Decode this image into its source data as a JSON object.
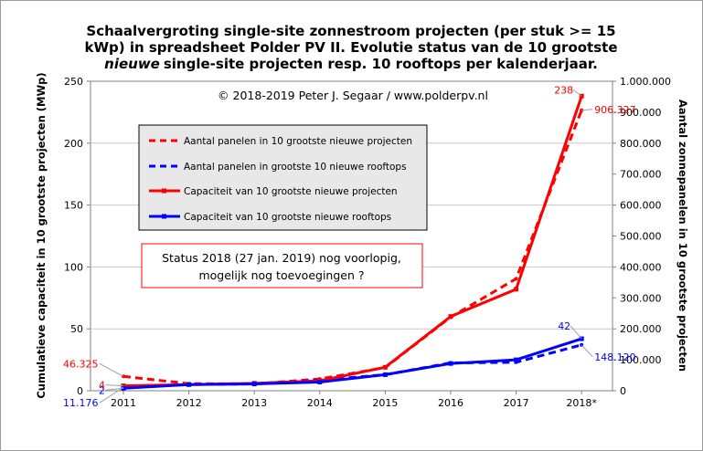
{
  "chart_data": {
    "type": "line",
    "title_lines": [
      "Schaalvergroting  single-site  zonnestroom  projecten  (per  stuk  >=  15",
      "kWp) in spreadsheet Polder PV II. Evolutie status van de 10 grootste",
      "single-site  projecten  resp.  10  rooftops  per  kalenderjaar."
    ],
    "title_italic_word": "nieuwe",
    "copyright": "© 2018-2019  Peter J. Segaar / www.polderpv.nl",
    "note_lines": [
      "Status 2018 (27 jan. 2019) nog voorlopig,",
      "mogelijk  nog toevoegingen ?"
    ],
    "categories": [
      "2011",
      "2012",
      "2013",
      "2014",
      "2015",
      "2016",
      "2017",
      "2018*"
    ],
    "ylabel_left": "Cumulatieve capaciteit in 10 grootste projecten (MWp)",
    "ylabel_right": "Aantal zonnepanelen in 10 grootste projecten",
    "ylim_left": [
      0,
      250
    ],
    "ylim_right": [
      0,
      1000000
    ],
    "yticks_left": [
      "0",
      "50",
      "100",
      "150",
      "200",
      "250"
    ],
    "yticks_right": [
      "0",
      "100.000",
      "200.000",
      "300.000",
      "400.000",
      "500.000",
      "600.000",
      "700.000",
      "800.000",
      "900.000",
      "1.000.000"
    ],
    "grid": true,
    "legend_position": "upper-left",
    "series": [
      {
        "name": "Aantal panelen in 10 grootste nieuwe projecten",
        "axis": "right",
        "style": "dashed",
        "color": "#ff0000",
        "values": [
          46325,
          23000,
          22000,
          38000,
          75000,
          238000,
          362000,
          906327
        ]
      },
      {
        "name": "Aantal panelen in grootste 10 nieuwe rooftops",
        "axis": "right",
        "style": "dashed",
        "color": "#0000ff",
        "values": [
          11176,
          20000,
          22000,
          34000,
          52000,
          90000,
          92000,
          148120
        ]
      },
      {
        "name": "Capaciteit van 10 grootste nieuwe projecten",
        "axis": "left",
        "style": "solid",
        "color": "#ff0000",
        "values": [
          4,
          5,
          6,
          8,
          19,
          60,
          82,
          238
        ]
      },
      {
        "name": "Capaciteit van 10 grootste nieuwe rooftops",
        "axis": "left",
        "style": "solid",
        "color": "#0000ff",
        "values": [
          2,
          5,
          5.5,
          7,
          13,
          22,
          25,
          42
        ]
      }
    ],
    "data_labels": [
      {
        "text": "46.325",
        "series": 0,
        "index": 0,
        "color": "#ff0000"
      },
      {
        "text": "4",
        "series": 2,
        "index": 0,
        "color": "#ff0000"
      },
      {
        "text": "2",
        "series": 3,
        "index": 0,
        "color": "#0000ff"
      },
      {
        "text": "11.176",
        "series": 1,
        "index": 0,
        "color": "#0000ff"
      },
      {
        "text": "238",
        "series": 2,
        "index": 7,
        "color": "#ff0000"
      },
      {
        "text": "906.327",
        "series": 0,
        "index": 7,
        "color": "#ff0000"
      },
      {
        "text": "42",
        "series": 3,
        "index": 7,
        "color": "#0000ff"
      },
      {
        "text": "148.120",
        "series": 1,
        "index": 7,
        "color": "#0000ff"
      }
    ]
  }
}
